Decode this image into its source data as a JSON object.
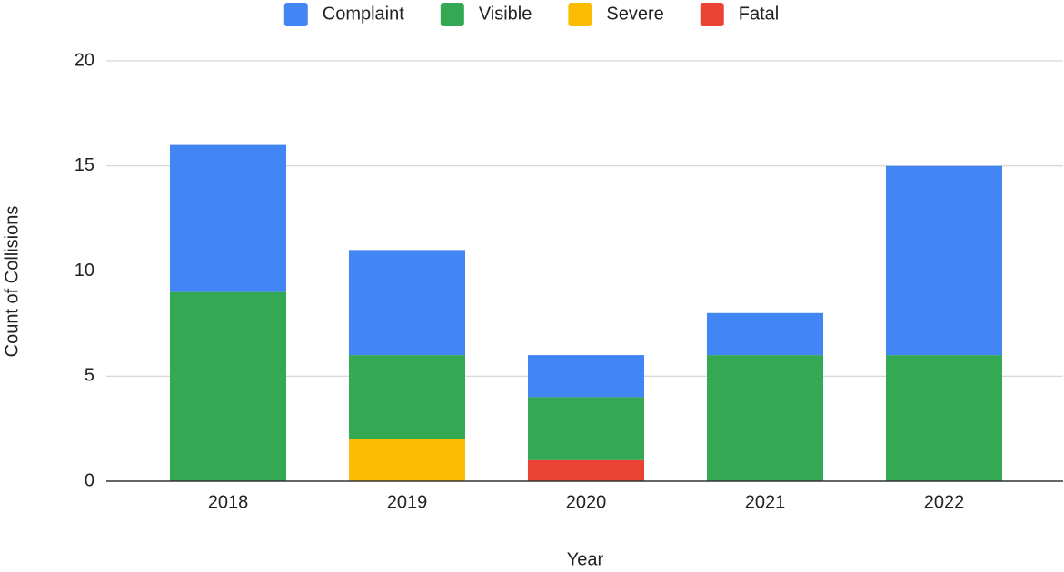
{
  "chart_data": {
    "type": "stacked_bar",
    "x_label": "Year",
    "y_label": "Count of Collisions",
    "categories": [
      "2018",
      "2019",
      "2020",
      "2021",
      "2022"
    ],
    "series": [
      {
        "name": "Complaint",
        "color": "#4285f4",
        "values": [
          7,
          5,
          2,
          2,
          9
        ]
      },
      {
        "name": "Visible",
        "color": "#34a853",
        "values": [
          9,
          4,
          3,
          6,
          6
        ]
      },
      {
        "name": "Severe",
        "color": "#fbbc04",
        "values": [
          0,
          2,
          0,
          0,
          0
        ]
      },
      {
        "name": "Fatal",
        "color": "#ea4335",
        "values": [
          0,
          0,
          1,
          0,
          0
        ]
      }
    ],
    "stack_order": "reverse",
    "ylim": [
      0,
      20
    ],
    "yticks": [
      0,
      5,
      10,
      15,
      20
    ],
    "grid": true,
    "legend": "top"
  }
}
